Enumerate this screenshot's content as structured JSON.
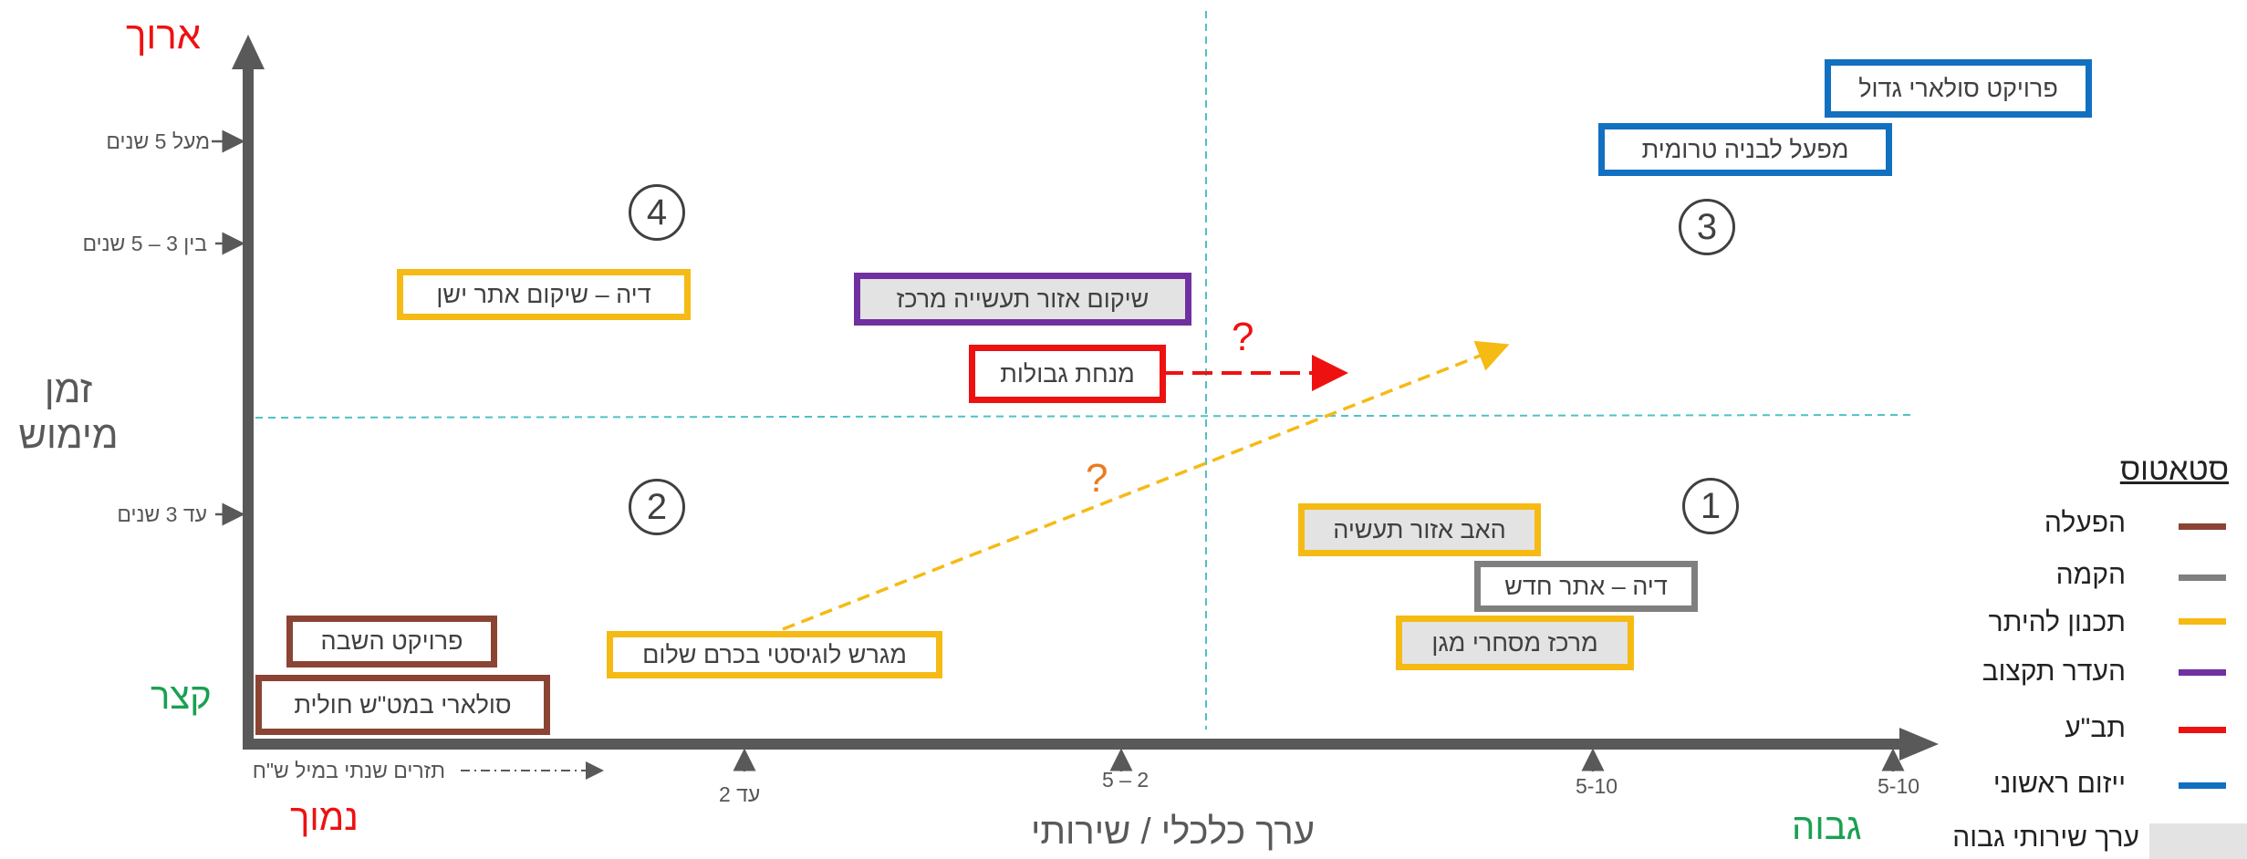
{
  "axes": {
    "y_label_line1": "זמן",
    "y_label_line2": "מימוש",
    "y_top": "ארוך",
    "y_bottom": "קצר",
    "x_label": "ערך כלכלי / שירותי",
    "x_left": "נמוך",
    "x_right": "גבוה",
    "y_ticks": [
      "מעל 5 שנים",
      "בין 3 – 5 שנים",
      "עד 3 שנים"
    ],
    "x_ticks": [
      "עד 2",
      "2 – 5",
      "5-10",
      "5-10"
    ],
    "x_note": "תזרים שנתי במיל ש\"ח"
  },
  "quadrants": [
    "1",
    "2",
    "3",
    "4"
  ],
  "question_marks": [
    "?",
    "?"
  ],
  "projects": [
    {
      "name": "פרויקט סולארי גדול",
      "status": "ייזום ראשוני",
      "high_service": false
    },
    {
      "name": "מפעל לבניה טרומית",
      "status": "ייזום ראשוני",
      "high_service": false
    },
    {
      "name": "דיה – שיקום אתר ישן",
      "status": "תכנון להיתר",
      "high_service": false
    },
    {
      "name": "שיקום אזור תעשייה מרכז",
      "status": "העדר תקצוב",
      "high_service": true
    },
    {
      "name": "מנחת גבולות",
      "status": "תב\"ע",
      "high_service": false
    },
    {
      "name": "האב אזור תעשיה",
      "status": "תכנון להיתר",
      "high_service": true
    },
    {
      "name": "דיה – אתר חדש",
      "status": "הקמה",
      "high_service": false
    },
    {
      "name": "מרכז מסחרי מגן",
      "status": "תכנון להיתר",
      "high_service": true
    },
    {
      "name": "פרויקט השבה",
      "status": "הפעלה",
      "high_service": false
    },
    {
      "name": "סולארי במט\"ש חולית",
      "status": "הפעלה",
      "high_service": false
    },
    {
      "name": "מגרש לוגיסטי בכרם שלום",
      "status": "תכנון להיתר",
      "high_service": false
    }
  ],
  "legend": {
    "title": "סטאטוס",
    "items": [
      {
        "label": "הפעלה",
        "color": "#8B4433"
      },
      {
        "label": "הקמה",
        "color": "#7f7f7f"
      },
      {
        "label": "תכנון להיתר",
        "color": "#F5BA14"
      },
      {
        "label": "העדר תקצוב",
        "color": "#7030A0"
      },
      {
        "label": "תב\"ע",
        "color": "#EE1111"
      },
      {
        "label": "ייזום ראשוני",
        "color": "#1270C0"
      }
    ],
    "high_service_label": "ערך שירותי גבוה"
  },
  "colors": {
    "axis": "#595959",
    "guide": "#4FC1C6",
    "low_red": "#EE1111",
    "high_green": "#1AA052",
    "arrow_yellow": "#F5BA14",
    "arrow_red": "#EE1111",
    "question_orange": "#E97C20",
    "question_red": "#EE1111"
  }
}
